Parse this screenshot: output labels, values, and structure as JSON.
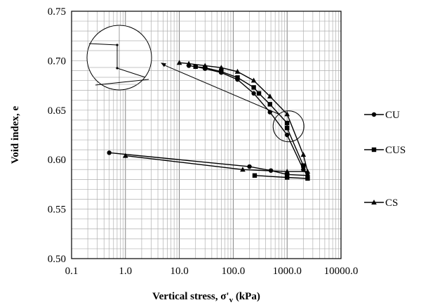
{
  "chart_data": {
    "type": "line",
    "xscale": "log",
    "xlim": [
      0.1,
      10000
    ],
    "ylim": [
      0.5,
      0.75
    ],
    "grid": true,
    "xlabel": "Vertical stress, σ'ᵥ (kPa)",
    "ylabel": "Void index, e",
    "x_ticks": [
      0.1,
      1,
      10,
      100,
      1000,
      10000
    ],
    "x_tick_labels": [
      "0.1",
      "1.0",
      "10.0",
      "100.0",
      "1000.0",
      "10000.0"
    ],
    "y_ticks": [
      0.5,
      0.55,
      0.6,
      0.65,
      0.7,
      0.75
    ],
    "y_tick_labels": [
      "0.50",
      "0.55",
      "0.60",
      "0.65",
      "0.70",
      "0.75"
    ],
    "legend_position": "right",
    "series": [
      {
        "name": "CU",
        "marker": "circle",
        "x": [
          15,
          20,
          30,
          60,
          120,
          240,
          480,
          1000,
          2000,
          2400,
          1000,
          500,
          200,
          0.5
        ],
        "y": [
          0.695,
          0.694,
          0.692,
          0.688,
          0.681,
          0.667,
          0.648,
          0.625,
          0.59,
          0.584,
          0.585,
          0.589,
          0.593,
          0.607
        ]
      },
      {
        "name": "CUS",
        "marker": "square",
        "x": [
          20,
          30,
          60,
          120,
          240,
          300,
          480,
          1000,
          1000,
          2000,
          2400,
          1000,
          250
        ],
        "y": [
          0.694,
          0.693,
          0.689,
          0.683,
          0.673,
          0.667,
          0.656,
          0.637,
          0.632,
          0.594,
          0.581,
          0.582,
          0.584
        ]
      },
      {
        "name": "CS",
        "marker": "triangle",
        "x": [
          10,
          15,
          30,
          60,
          120,
          240,
          480,
          1000,
          2000,
          2400,
          1000,
          150,
          1.0
        ],
        "y": [
          0.698,
          0.697,
          0.695,
          0.693,
          0.689,
          0.68,
          0.664,
          0.646,
          0.605,
          0.588,
          0.588,
          0.59,
          0.604
        ]
      }
    ],
    "annotations": [
      {
        "type": "zoom-inset",
        "description": "circle magnifying region near x≈1000, e≈0.63",
        "target_x": 1000,
        "target_y": 0.633,
        "inset_anchor_x": 4.5,
        "inset_anchor_y": 0.698
      }
    ]
  }
}
